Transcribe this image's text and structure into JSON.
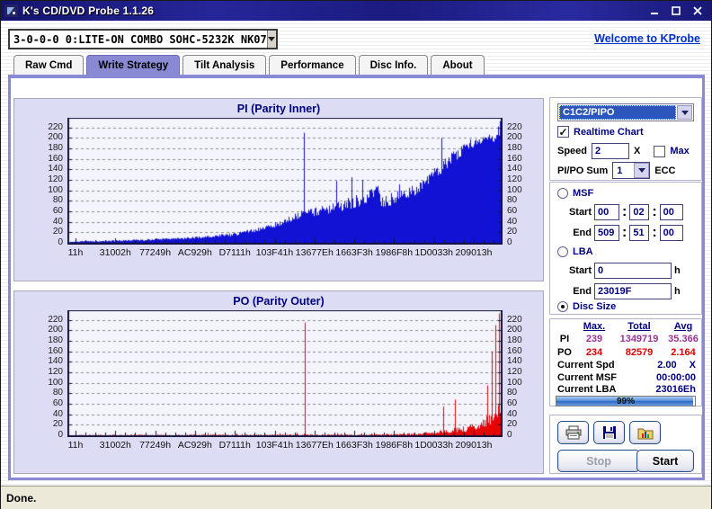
{
  "window": {
    "title": "K's CD/DVD Probe 1.1.26"
  },
  "toolbar": {
    "drive_combo": "3-0-0-0 0:LITE-ON COMBO SOHC-5232K NK07",
    "welcome_link": "Welcome to KProbe"
  },
  "tabs": {
    "active_index": 1,
    "items": [
      {
        "label": "Raw Cmd"
      },
      {
        "label": "Write Strategy"
      },
      {
        "label": "Tilt Analysis"
      },
      {
        "label": "Performance"
      },
      {
        "label": "Disc Info."
      },
      {
        "label": "About"
      }
    ]
  },
  "controls": {
    "mode_combo": "C1C2/PIPO",
    "realtime_chart": {
      "label": "Realtime Chart",
      "checked": true
    },
    "speed": {
      "label": "Speed",
      "value": "2",
      "unit": "X"
    },
    "max": {
      "label": "Max",
      "checked": false
    },
    "pipo_sum": {
      "label": "PI/PO Sum",
      "value": "1",
      "unit": "ECC"
    }
  },
  "range": {
    "msf": {
      "label": "MSF",
      "selected": false,
      "start_label": "Start",
      "end_label": "End",
      "start": [
        "00",
        "02",
        "00"
      ],
      "end": [
        "509",
        "51",
        "00"
      ]
    },
    "lba": {
      "label": "LBA",
      "selected": false,
      "start_label": "Start",
      "end_label": "End",
      "start": "0",
      "end": "23019F",
      "unit": "h"
    },
    "disc_size": {
      "label": "Disc Size",
      "selected": true
    }
  },
  "stats": {
    "headers": {
      "max": "Max.",
      "total": "Total",
      "avg": "Avg"
    },
    "pi": {
      "label": "PI",
      "max": "239",
      "total": "1349719",
      "avg": "35.366"
    },
    "po": {
      "label": "PO",
      "max": "234",
      "total": "82579",
      "avg": "2.164"
    },
    "current_spd": {
      "label": "Current Spd",
      "value": "2.00",
      "unit": "X"
    },
    "current_msf": {
      "label": "Current MSF",
      "value": "00:00:00"
    },
    "current_lba": {
      "label": "Current LBA",
      "value": "23016Eh"
    },
    "progress": {
      "percent": 99,
      "label": "99%"
    }
  },
  "actions": {
    "stop": "Stop",
    "start": "Start"
  },
  "statusbar": {
    "text": "Done."
  },
  "colors": {
    "pi_bar": "#1212d4",
    "po_bar": "#e80404",
    "accent_purple": "#8a8ad4",
    "navy": "#000080",
    "link_blue": "#0030cc",
    "stat_purple": "#993399",
    "stat_red": "#e00000",
    "titlebar": "#1b1b80",
    "status_bg": "#ece9d8"
  },
  "chart_data": [
    {
      "type": "bar",
      "title": "PI (Parity Inner)",
      "color": "#1212d4",
      "ylim": [
        0,
        235
      ],
      "ytick_step": 20,
      "ytick_max": 220,
      "grid": "dashed-horizontal",
      "x_labels": [
        "11h",
        "31002h",
        "77249h",
        "AC929h",
        "D7111h",
        "103F41h",
        "13677Eh",
        "1663F3h",
        "1986F8h",
        "1D0033h",
        "209013h"
      ],
      "seed": 7,
      "envelope": [
        [
          0,
          2
        ],
        [
          0.08,
          3
        ],
        [
          0.16,
          5
        ],
        [
          0.22,
          7
        ],
        [
          0.28,
          9
        ],
        [
          0.33,
          12
        ],
        [
          0.38,
          16
        ],
        [
          0.42,
          22
        ],
        [
          0.45,
          28
        ],
        [
          0.48,
          35
        ],
        [
          0.5,
          42
        ],
        [
          0.53,
          52
        ],
        [
          0.56,
          58
        ],
        [
          0.6,
          64
        ],
        [
          0.64,
          72
        ],
        [
          0.67,
          78
        ],
        [
          0.695,
          88
        ],
        [
          0.715,
          108
        ],
        [
          0.722,
          76
        ],
        [
          0.75,
          84
        ],
        [
          0.78,
          92
        ],
        [
          0.8,
          100
        ],
        [
          0.82,
          108
        ],
        [
          0.84,
          125
        ],
        [
          0.86,
          140
        ],
        [
          0.88,
          155
        ],
        [
          0.9,
          170
        ],
        [
          0.92,
          182
        ],
        [
          0.94,
          192
        ],
        [
          0.96,
          198
        ],
        [
          0.98,
          200
        ],
        [
          1,
          202
        ]
      ],
      "noise": [
        [
          0,
          1
        ],
        [
          0.3,
          2
        ],
        [
          0.45,
          4
        ],
        [
          0.55,
          8
        ],
        [
          0.65,
          10
        ],
        [
          0.75,
          12
        ],
        [
          0.85,
          12
        ],
        [
          1,
          9
        ]
      ],
      "spike_prob": 0.05,
      "spikes": [
        [
          0.545,
          210
        ],
        [
          0.62,
          118
        ],
        [
          0.655,
          125
        ],
        [
          0.68,
          120
        ],
        [
          0.865,
          200
        ],
        [
          0.995,
          222
        ],
        [
          0.9995,
          232
        ]
      ]
    },
    {
      "type": "bar",
      "title": "PO (Parity Outer)",
      "color": "#e80404",
      "ylim": [
        0,
        235
      ],
      "ytick_step": 20,
      "ytick_max": 220,
      "grid": "dashed-horizontal",
      "x_labels": [
        "11h",
        "31002h",
        "77249h",
        "AC929h",
        "D7111h",
        "103F41h",
        "13677Eh",
        "1663F3h",
        "1986F8h",
        "1D0033h",
        "209013h"
      ],
      "seed": 13,
      "envelope": [
        [
          0,
          0.4
        ],
        [
          0.5,
          0.6
        ],
        [
          0.72,
          0.8
        ],
        [
          0.78,
          1.5
        ],
        [
          0.82,
          3
        ],
        [
          0.86,
          6
        ],
        [
          0.9,
          10
        ],
        [
          0.93,
          14
        ],
        [
          0.955,
          20
        ],
        [
          0.975,
          30
        ],
        [
          0.99,
          42
        ],
        [
          1,
          55
        ]
      ],
      "noise": [
        [
          0,
          0.6
        ],
        [
          0.7,
          1
        ],
        [
          0.85,
          3
        ],
        [
          0.95,
          8
        ],
        [
          1,
          14
        ]
      ],
      "spike_prob": 0.02,
      "blips": {
        "prob": 0.04,
        "max": 4,
        "until": 0.8
      },
      "spikes": [
        [
          0.548,
          215
        ],
        [
          0.868,
          55
        ],
        [
          0.896,
          68
        ],
        [
          0.97,
          95
        ],
        [
          0.982,
          160
        ],
        [
          0.99,
          210
        ],
        [
          0.998,
          232
        ]
      ]
    }
  ]
}
